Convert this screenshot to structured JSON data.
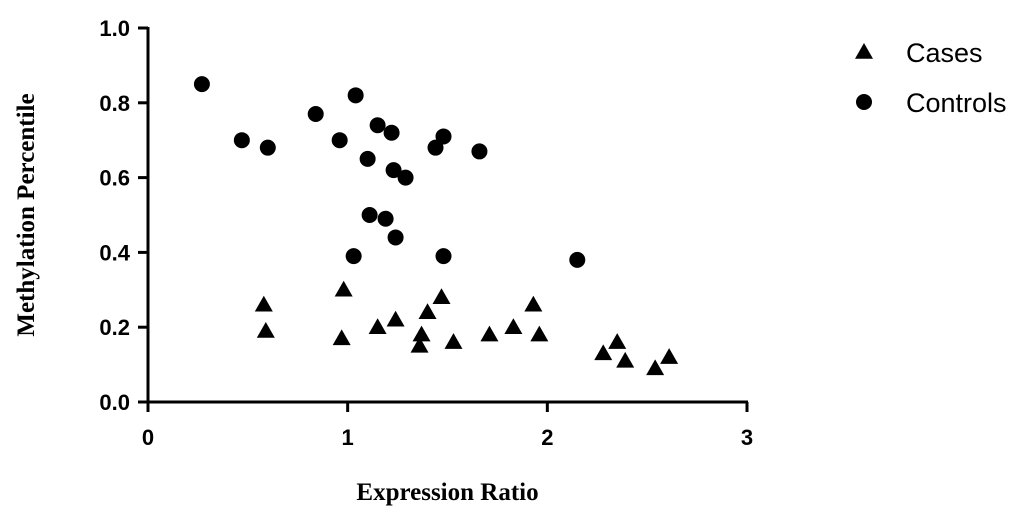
{
  "chart_data": {
    "type": "scatter",
    "title": "",
    "xlabel": "Expression Ratio",
    "ylabel": "Methylation Percentile",
    "xlim": [
      0,
      3
    ],
    "ylim": [
      0,
      1.0
    ],
    "xticks": [
      "0",
      "1",
      "2",
      "3"
    ],
    "yticks": [
      "0.0",
      "0.2",
      "0.4",
      "0.6",
      "0.8",
      "1.0"
    ],
    "grid": false,
    "legend_position": "top-right",
    "series": [
      {
        "name": "Cases",
        "marker": "triangle",
        "color": "#000000",
        "points": [
          [
            0.58,
            0.26
          ],
          [
            0.59,
            0.19
          ],
          [
            0.98,
            0.3
          ],
          [
            0.97,
            0.17
          ],
          [
            1.15,
            0.2
          ],
          [
            1.24,
            0.22
          ],
          [
            1.36,
            0.15
          ],
          [
            1.37,
            0.18
          ],
          [
            1.4,
            0.24
          ],
          [
            1.47,
            0.28
          ],
          [
            1.53,
            0.16
          ],
          [
            1.71,
            0.18
          ],
          [
            1.83,
            0.2
          ],
          [
            1.93,
            0.26
          ],
          [
            1.96,
            0.18
          ],
          [
            2.28,
            0.13
          ],
          [
            2.35,
            0.16
          ],
          [
            2.39,
            0.11
          ],
          [
            2.54,
            0.09
          ],
          [
            2.61,
            0.12
          ]
        ]
      },
      {
        "name": "Controls",
        "marker": "circle",
        "color": "#000000",
        "points": [
          [
            0.27,
            0.85
          ],
          [
            0.47,
            0.7
          ],
          [
            0.6,
            0.68
          ],
          [
            0.84,
            0.77
          ],
          [
            0.96,
            0.7
          ],
          [
            1.04,
            0.82
          ],
          [
            1.1,
            0.65
          ],
          [
            1.15,
            0.74
          ],
          [
            1.22,
            0.72
          ],
          [
            1.23,
            0.62
          ],
          [
            1.29,
            0.6
          ],
          [
            1.44,
            0.68
          ],
          [
            1.48,
            0.71
          ],
          [
            1.66,
            0.67
          ],
          [
            1.11,
            0.5
          ],
          [
            1.19,
            0.49
          ],
          [
            1.24,
            0.44
          ],
          [
            1.03,
            0.39
          ],
          [
            1.48,
            0.39
          ],
          [
            2.15,
            0.38
          ]
        ]
      }
    ]
  }
}
